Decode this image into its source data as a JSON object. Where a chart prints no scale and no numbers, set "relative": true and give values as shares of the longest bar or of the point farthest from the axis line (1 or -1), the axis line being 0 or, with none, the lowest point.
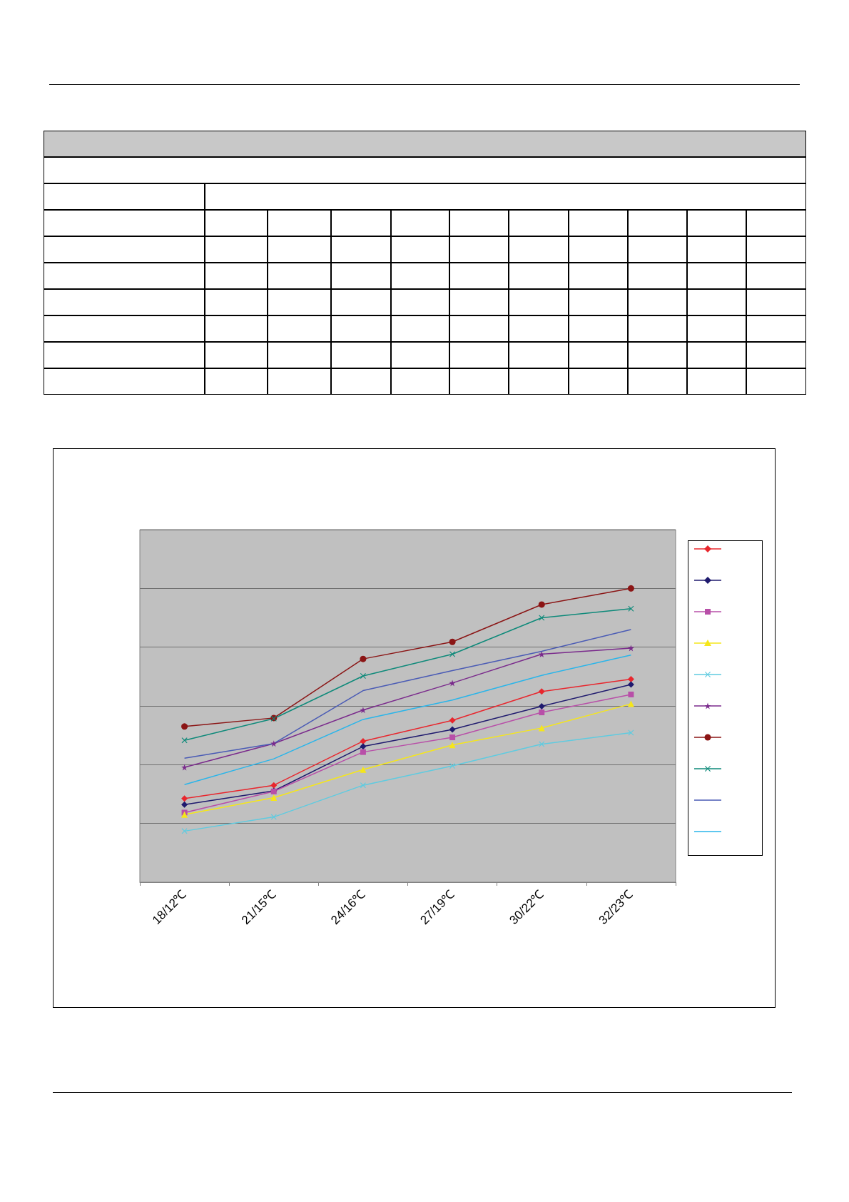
{
  "chart_data": {
    "type": "line",
    "categories": [
      "18/12℃",
      "21/15℃",
      "24/16℃",
      "27/19℃",
      "30/22℃",
      "32/23℃"
    ],
    "relative": true,
    "grid": "y",
    "series": [
      {
        "color": "#e8262d",
        "marker": "diamond",
        "values": [
          0.285,
          0.33,
          0.48,
          0.551,
          0.649,
          0.691
        ]
      },
      {
        "color": "#1f1a6e",
        "marker": "diamond",
        "values": [
          0.264,
          0.311,
          0.462,
          0.52,
          0.599,
          0.673
        ]
      },
      {
        "color": "#b84fa8",
        "marker": "square",
        "values": [
          0.237,
          0.309,
          0.443,
          0.493,
          0.578,
          0.639
        ]
      },
      {
        "color": "#f5e61a",
        "marker": "triangle",
        "values": [
          0.23,
          0.288,
          0.383,
          0.467,
          0.525,
          0.607
        ]
      },
      {
        "color": "#5fcbe0",
        "marker": "cross",
        "values": [
          0.174,
          0.222,
          0.33,
          0.396,
          0.47,
          0.509
        ]
      },
      {
        "color": "#7a2a8c",
        "marker": "star",
        "values": [
          0.391,
          0.472,
          0.586,
          0.678,
          0.776,
          0.797
        ]
      },
      {
        "color": "#8b1515",
        "marker": "circle",
        "values": [
          0.53,
          0.559,
          0.76,
          0.818,
          0.945,
          1
        ]
      },
      {
        "color": "#0e8a7a",
        "marker": "cross",
        "values": [
          0.483,
          0.557,
          0.702,
          0.776,
          0.9,
          0.931
        ]
      },
      {
        "color": "#4a5bb5",
        "marker": "none",
        "values": [
          0.422,
          0.472,
          0.652,
          0.72,
          0.786,
          0.86
        ]
      },
      {
        "color": "#29b5ea",
        "marker": "none",
        "values": [
          0.332,
          0.42,
          0.554,
          0.62,
          0.704,
          0.773
        ]
      }
    ]
  }
}
